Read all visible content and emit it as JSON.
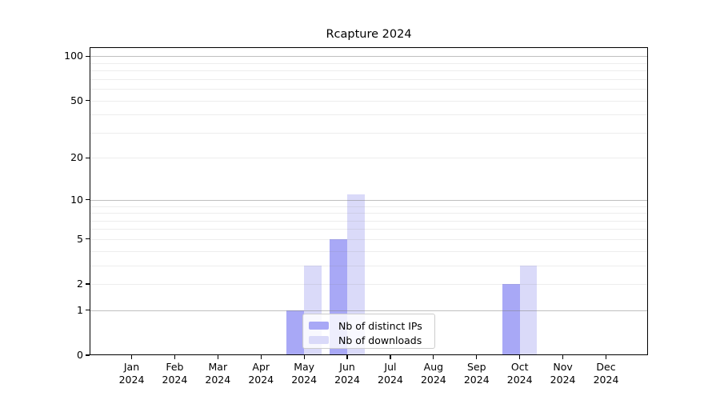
{
  "chart_data": {
    "type": "bar",
    "title": "Rcapture 2024",
    "categories": [
      "Jan",
      "Feb",
      "Mar",
      "Apr",
      "May",
      "Jun",
      "Jul",
      "Aug",
      "Sep",
      "Oct",
      "Nov",
      "Dec"
    ],
    "year_label": "2024",
    "series": [
      {
        "name": "Nb of distinct IPs",
        "color": "#a8a8f6",
        "values": [
          0,
          0,
          0,
          0,
          1,
          5,
          0,
          0,
          0,
          2,
          0,
          0
        ]
      },
      {
        "name": "Nb of downloads",
        "color": "#dadaf9",
        "values": [
          0,
          0,
          0,
          0,
          3,
          11,
          0,
          0,
          0,
          3,
          0,
          0
        ]
      }
    ],
    "yscale": "log1p",
    "ylim": [
      0,
      115
    ],
    "ytick_labels": [
      "0",
      "1",
      "2",
      "5",
      "10",
      "20",
      "50",
      "100"
    ],
    "yticks": [
      0,
      1,
      2,
      5,
      10,
      20,
      50,
      100
    ],
    "major_gridlines": [
      1,
      10,
      100
    ],
    "minor_gridlines": [
      2,
      3,
      4,
      5,
      6,
      7,
      8,
      9,
      20,
      30,
      40,
      50,
      60,
      70,
      80,
      90
    ],
    "grid": "on",
    "legend_position": "lower center",
    "xlabel": "",
    "ylabel": ""
  }
}
